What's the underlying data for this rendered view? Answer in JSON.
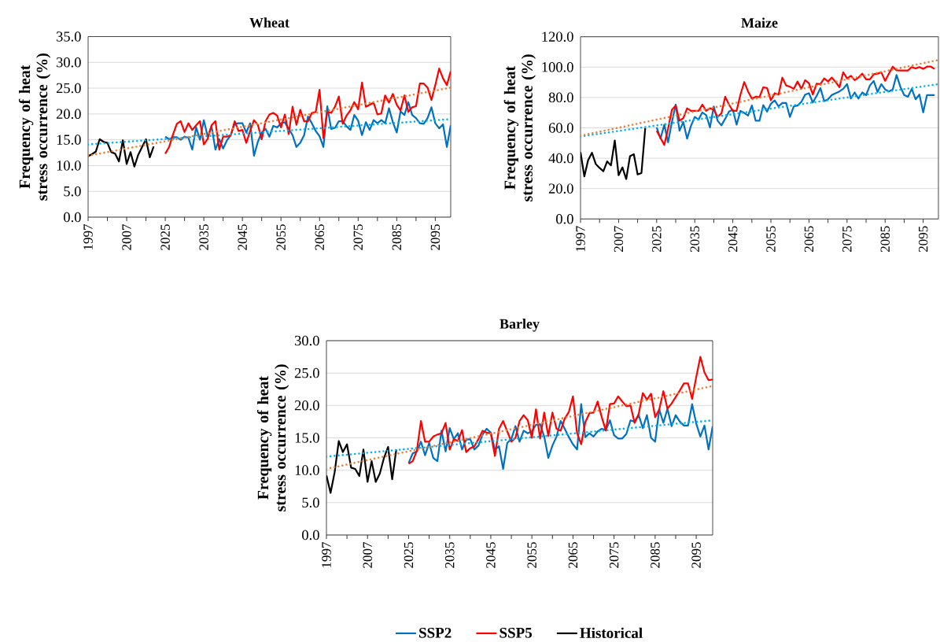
{
  "chart_data": [
    {
      "type": "line",
      "title": "Wheat",
      "ylabel": "Frequency of heat stress occurrence (%)",
      "grid": "y",
      "categories": [
        "1997",
        null,
        null,
        null,
        null,
        null,
        null,
        null,
        null,
        null,
        "2007",
        null,
        null,
        null,
        null,
        null,
        null,
        null,
        null,
        null,
        "2025",
        null,
        null,
        null,
        null,
        null,
        null,
        null,
        null,
        null,
        "2035",
        null,
        null,
        null,
        null,
        null,
        null,
        null,
        null,
        null,
        "2045",
        null,
        null,
        null,
        null,
        null,
        null,
        null,
        null,
        null,
        "2055",
        null,
        null,
        null,
        null,
        null,
        null,
        null,
        null,
        null,
        "2065",
        null,
        null,
        null,
        null,
        null,
        null,
        null,
        null,
        null,
        "2075",
        null,
        null,
        null,
        null,
        null,
        null,
        null,
        null,
        null,
        "2085",
        null,
        null,
        null,
        null,
        null,
        null,
        null,
        null,
        null,
        "2095",
        null,
        null,
        null,
        null
      ],
      "ylim": [
        0,
        35
      ],
      "yticks": [
        {
          "value": 0,
          "label": "0.0"
        },
        {
          "value": 5,
          "label": "5.0"
        },
        {
          "value": 10,
          "label": "10.0"
        },
        {
          "value": 15,
          "label": "15.0"
        },
        {
          "value": 20,
          "label": "20.0"
        },
        {
          "value": 25,
          "label": "25.0"
        },
        {
          "value": 30,
          "label": "30.0"
        },
        {
          "value": 35,
          "label": "35.0"
        }
      ],
      "series": [
        {
          "color": "#0070c0",
          "values": [
            null,
            null,
            null,
            null,
            null,
            null,
            null,
            null,
            null,
            null,
            null,
            null,
            null,
            null,
            null,
            null,
            null,
            null,
            null,
            null,
            15.6,
            15.1,
            15.5,
            15.5,
            15.0,
            15.6,
            15.4,
            13.1,
            17.4,
            15.0,
            18.8,
            15.6,
            17.6,
            13.1,
            15.1,
            13.3,
            14.9,
            15.9,
            18.1,
            18.2,
            18.2,
            16.4,
            18.2,
            11.9,
            14.6,
            16.4,
            17.1,
            15.6,
            17.7,
            17.4,
            18.2,
            18.4,
            17.1,
            15.9,
            13.6,
            14.4,
            15.9,
            19.5,
            18.2,
            16.7,
            15.7,
            13.6,
            21.5,
            17.1,
            17.3,
            18.6,
            18.6,
            17.6,
            16.9,
            19.8,
            18.7,
            15.9,
            18.4,
            16.9,
            18.8,
            18.2,
            18.8,
            18.2,
            21.1,
            18.4,
            16.4,
            20.5,
            19.8,
            22.3,
            19.8,
            19.2,
            18.2,
            18.1,
            19.2,
            21.3,
            18.2,
            17.2,
            18.0,
            13.6,
            17.8
          ]
        },
        {
          "color": "#ff0000",
          "values": [
            null,
            null,
            null,
            null,
            null,
            null,
            null,
            null,
            null,
            null,
            null,
            null,
            null,
            null,
            null,
            null,
            null,
            null,
            null,
            null,
            12.3,
            13.6,
            16.0,
            18.1,
            18.6,
            16.5,
            18.2,
            16.9,
            17.8,
            18.6,
            14.1,
            15.2,
            17.8,
            18.6,
            13.1,
            15.6,
            15.6,
            15.9,
            18.6,
            16.7,
            16.9,
            14.4,
            16.7,
            18.8,
            17.9,
            15.1,
            18.6,
            19.9,
            20.2,
            19.7,
            17.4,
            19.9,
            16.1,
            21.4,
            17.9,
            20.8,
            18.6,
            18.6,
            20.2,
            20.4,
            24.7,
            15.3,
            20.4,
            20.2,
            21.4,
            23.4,
            18.1,
            19.7,
            20.7,
            22.3,
            20.9,
            26.1,
            21.4,
            21.8,
            22.2,
            19.9,
            20.1,
            23.6,
            22.2,
            23.9,
            21.8,
            20.7,
            23.6,
            20.4,
            21.3,
            21.5,
            25.9,
            25.9,
            25.1,
            22.7,
            25.6,
            28.8,
            26.9,
            25.6,
            28.3
          ]
        },
        {
          "color": "#000000",
          "values": [
            11.8,
            12.2,
            12.7,
            15.1,
            14.6,
            14.4,
            12.6,
            12.3,
            10.8,
            14.9,
            10.3,
            12.6,
            9.8,
            12.1,
            13.6,
            15.1,
            11.6,
            13.7,
            null,
            null,
            null,
            null,
            null,
            null,
            null,
            null,
            null,
            null,
            null,
            null,
            null,
            null,
            null,
            null,
            null,
            null,
            null,
            null,
            null,
            null,
            null,
            null,
            null,
            null,
            null,
            null,
            null,
            null,
            null,
            null,
            null,
            null,
            null,
            null,
            null,
            null,
            null,
            null,
            null,
            null,
            null,
            null,
            null,
            null,
            null,
            null,
            null,
            null,
            null,
            null,
            null,
            null,
            null,
            null,
            null,
            null,
            null,
            null,
            null,
            null,
            null,
            null,
            null,
            null,
            null,
            null,
            null,
            null,
            null,
            null,
            null,
            null,
            null,
            null,
            null
          ]
        },
        {
          "type": "line",
          "color": "#00b0f0",
          "line_style": "dotted",
          "values": [
            14.1,
            null,
            null,
            null,
            null,
            null,
            null,
            null,
            null,
            null,
            null,
            null,
            null,
            null,
            null,
            null,
            null,
            null,
            null,
            null,
            null,
            null,
            null,
            null,
            null,
            null,
            null,
            null,
            null,
            null,
            null,
            null,
            null,
            null,
            null,
            null,
            null,
            null,
            null,
            null,
            null,
            null,
            null,
            null,
            null,
            null,
            null,
            null,
            null,
            null,
            null,
            null,
            null,
            null,
            null,
            null,
            null,
            null,
            null,
            null,
            null,
            null,
            null,
            null,
            null,
            null,
            null,
            null,
            null,
            null,
            null,
            null,
            null,
            null,
            null,
            null,
            null,
            null,
            null,
            null,
            null,
            null,
            null,
            null,
            null,
            null,
            null,
            null,
            null,
            null,
            null,
            null,
            null,
            null,
            19.0
          ]
        },
        {
          "type": "line",
          "color": "#ed7d31",
          "line_style": "dotted",
          "values": [
            11.9,
            null,
            null,
            null,
            null,
            null,
            null,
            null,
            null,
            null,
            null,
            null,
            null,
            null,
            null,
            null,
            null,
            null,
            null,
            null,
            null,
            null,
            null,
            null,
            null,
            null,
            null,
            null,
            null,
            null,
            null,
            null,
            null,
            null,
            null,
            null,
            null,
            null,
            null,
            null,
            null,
            null,
            null,
            null,
            null,
            null,
            null,
            null,
            null,
            null,
            null,
            null,
            null,
            null,
            null,
            null,
            null,
            null,
            null,
            null,
            null,
            null,
            null,
            null,
            null,
            null,
            null,
            null,
            null,
            null,
            null,
            null,
            null,
            null,
            null,
            null,
            null,
            null,
            null,
            null,
            null,
            null,
            null,
            null,
            null,
            null,
            null,
            null,
            null,
            null,
            null,
            null,
            null,
            null,
            25.1
          ]
        }
      ]
    },
    {
      "type": "line",
      "title": "Maize",
      "ylabel": "Frequency of heat stress occurrence (%)",
      "grid": "y",
      "categories": [
        "1997",
        null,
        null,
        null,
        null,
        null,
        null,
        null,
        null,
        null,
        "2007",
        null,
        null,
        null,
        null,
        null,
        null,
        null,
        null,
        null,
        "2025",
        null,
        null,
        null,
        null,
        null,
        null,
        null,
        null,
        null,
        "2035",
        null,
        null,
        null,
        null,
        null,
        null,
        null,
        null,
        null,
        "2045",
        null,
        null,
        null,
        null,
        null,
        null,
        null,
        null,
        null,
        "2055",
        null,
        null,
        null,
        null,
        null,
        null,
        null,
        null,
        null,
        "2065",
        null,
        null,
        null,
        null,
        null,
        null,
        null,
        null,
        null,
        "2075",
        null,
        null,
        null,
        null,
        null,
        null,
        null,
        null,
        null,
        "2085",
        null,
        null,
        null,
        null,
        null,
        null,
        null,
        null,
        null,
        "2095",
        null,
        null,
        null,
        null
      ],
      "ylim": [
        0,
        120
      ],
      "yticks": [
        {
          "value": 0,
          "label": "0.0"
        },
        {
          "value": 20,
          "label": "20.0"
        },
        {
          "value": 40,
          "label": "40.0"
        },
        {
          "value": 60,
          "label": "60.0"
        },
        {
          "value": 80,
          "label": "80.0"
        },
        {
          "value": 100,
          "label": "100.0"
        },
        {
          "value": 120,
          "label": "120.0"
        }
      ],
      "series": [
        {
          "color": "#0070c0",
          "values": [
            null,
            null,
            null,
            null,
            null,
            null,
            null,
            null,
            null,
            null,
            null,
            null,
            null,
            null,
            null,
            null,
            null,
            null,
            null,
            null,
            60.3,
            52.9,
            62.1,
            50.5,
            63.8,
            75.3,
            58.1,
            63.8,
            52.9,
            61.2,
            67.2,
            65.5,
            70.2,
            68.4,
            60.3,
            74.1,
            64.7,
            61.6,
            66.0,
            70.7,
            71.9,
            62.1,
            71.2,
            69.8,
            68.1,
            74.7,
            64.7,
            64.7,
            75.0,
            70.7,
            75.9,
            78.1,
            74.1,
            76.4,
            76.4,
            67.2,
            74.1,
            74.7,
            77.1,
            81.9,
            82.8,
            76.7,
            81.0,
            86.2,
            77.6,
            78.8,
            81.6,
            82.8,
            84.0,
            85.7,
            88.8,
            79.3,
            83.3,
            79.3,
            83.3,
            81.6,
            87.9,
            90.9,
            83.6,
            88.8,
            85.3,
            84.0,
            85.3,
            94.8,
            87.1,
            81.6,
            80.5,
            85.7,
            78.8,
            81.9,
            70.2,
            81.6,
            81.6,
            81.6,
            null
          ]
        },
        {
          "color": "#ff0000",
          "values": [
            null,
            null,
            null,
            null,
            null,
            null,
            null,
            null,
            null,
            null,
            null,
            null,
            null,
            null,
            null,
            null,
            null,
            null,
            null,
            null,
            58.1,
            53.4,
            48.8,
            59.5,
            71.9,
            74.7,
            64.7,
            66.4,
            72.9,
            71.2,
            71.2,
            71.2,
            75.3,
            71.2,
            72.9,
            71.9,
            67.2,
            69.5,
            80.5,
            75.3,
            71.2,
            71.2,
            81.9,
            90.2,
            84.0,
            79.3,
            80.5,
            80.2,
            86.7,
            86.2,
            78.1,
            82.8,
            81.9,
            93.1,
            87.9,
            87.1,
            85.7,
            90.5,
            85.7,
            91.4,
            89.3,
            81.9,
            89.1,
            88.8,
            92.6,
            90.5,
            93.1,
            90.2,
            86.7,
            96.6,
            92.6,
            94.3,
            91.4,
            93.1,
            95.7,
            91.9,
            91.9,
            95.3,
            95.7,
            96.6,
            90.9,
            95.7,
            100.3,
            97.9,
            97.8,
            97.8,
            97.8,
            100.0,
            99.1,
            100.0,
            98.8,
            100.3,
            100.3,
            98.8,
            null
          ]
        },
        {
          "color": "#000000",
          "values": [
            44.0,
            28.0,
            38.8,
            43.6,
            36.2,
            33.6,
            31.4,
            37.9,
            35.3,
            51.7,
            28.8,
            34.0,
            26.2,
            41.4,
            42.6,
            29.3,
            30.2,
            59.8,
            null,
            null,
            null,
            null,
            null,
            null,
            null,
            null,
            null,
            null,
            null,
            null,
            null,
            null,
            null,
            null,
            null,
            null,
            null,
            null,
            null,
            null,
            null,
            null,
            null,
            null,
            null,
            null,
            null,
            null,
            null,
            null,
            null,
            null,
            null,
            null,
            null,
            null,
            null,
            null,
            null,
            null,
            null,
            null,
            null,
            null,
            null,
            null,
            null,
            null,
            null,
            null,
            null,
            null,
            null,
            null,
            null,
            null,
            null,
            null,
            null,
            null,
            null,
            null,
            null,
            null,
            null,
            null,
            null,
            null,
            null,
            null,
            null,
            null,
            null,
            null,
            null
          ]
        },
        {
          "type": "line",
          "color": "#00b0f0",
          "line_style": "dotted",
          "values": [
            54.3,
            null,
            null,
            null,
            null,
            null,
            null,
            null,
            null,
            null,
            null,
            null,
            null,
            null,
            null,
            null,
            null,
            null,
            null,
            null,
            null,
            null,
            null,
            null,
            null,
            null,
            null,
            null,
            null,
            null,
            null,
            null,
            null,
            null,
            null,
            null,
            null,
            null,
            null,
            null,
            null,
            null,
            null,
            null,
            null,
            null,
            null,
            null,
            null,
            null,
            null,
            null,
            null,
            null,
            null,
            null,
            null,
            null,
            null,
            null,
            null,
            null,
            null,
            null,
            null,
            null,
            null,
            null,
            null,
            null,
            null,
            null,
            null,
            null,
            null,
            null,
            null,
            null,
            null,
            null,
            null,
            null,
            null,
            null,
            null,
            null,
            null,
            null,
            null,
            null,
            null,
            null,
            null,
            null,
            88.8
          ]
        },
        {
          "type": "line",
          "color": "#ed7d31",
          "line_style": "dotted",
          "values": [
            54.8,
            null,
            null,
            null,
            null,
            null,
            null,
            null,
            null,
            null,
            null,
            null,
            null,
            null,
            null,
            null,
            null,
            null,
            null,
            null,
            null,
            null,
            null,
            null,
            null,
            null,
            null,
            null,
            null,
            null,
            null,
            null,
            null,
            null,
            null,
            null,
            null,
            null,
            null,
            null,
            null,
            null,
            null,
            null,
            null,
            null,
            null,
            null,
            null,
            null,
            null,
            null,
            null,
            null,
            null,
            null,
            null,
            null,
            null,
            null,
            null,
            null,
            null,
            null,
            null,
            null,
            null,
            null,
            null,
            null,
            null,
            null,
            null,
            null,
            null,
            null,
            null,
            null,
            null,
            null,
            null,
            null,
            null,
            null,
            null,
            null,
            null,
            null,
            null,
            null,
            null,
            null,
            null,
            null,
            104.7
          ]
        }
      ]
    },
    {
      "type": "line",
      "title": "Barley",
      "ylabel": "Frequency of heat stress occurrence (%)",
      "grid": "y",
      "legend": "bottom",
      "categories": [
        "1997",
        null,
        null,
        null,
        null,
        null,
        null,
        null,
        null,
        null,
        "2007",
        null,
        null,
        null,
        null,
        null,
        null,
        null,
        null,
        null,
        "2025",
        null,
        null,
        null,
        null,
        null,
        null,
        null,
        null,
        null,
        "2035",
        null,
        null,
        null,
        null,
        null,
        null,
        null,
        null,
        null,
        "2045",
        null,
        null,
        null,
        null,
        null,
        null,
        null,
        null,
        null,
        "2055",
        null,
        null,
        null,
        null,
        null,
        null,
        null,
        null,
        null,
        "2065",
        null,
        null,
        null,
        null,
        null,
        null,
        null,
        null,
        null,
        "2075",
        null,
        null,
        null,
        null,
        null,
        null,
        null,
        null,
        null,
        "2085",
        null,
        null,
        null,
        null,
        null,
        null,
        null,
        null,
        null,
        "2095",
        null,
        null,
        null,
        null
      ],
      "ylim": [
        0,
        30
      ],
      "yticks": [
        {
          "value": 0,
          "label": "0.0"
        },
        {
          "value": 5,
          "label": "5.0"
        },
        {
          "value": 10,
          "label": "10.0"
        },
        {
          "value": 15,
          "label": "15.0"
        },
        {
          "value": 20,
          "label": "20.0"
        },
        {
          "value": 25,
          "label": "25.0"
        },
        {
          "value": 30,
          "label": "30.0"
        }
      ],
      "series": [
        {
          "name": "SSP2",
          "color": "#0070c0",
          "values": [
            null,
            null,
            null,
            null,
            null,
            null,
            null,
            null,
            null,
            null,
            null,
            null,
            null,
            null,
            null,
            null,
            null,
            null,
            null,
            null,
            11.1,
            12.6,
            12.9,
            14.4,
            12.3,
            14.2,
            11.9,
            11.4,
            16.1,
            12.9,
            16.5,
            14.8,
            15.7,
            13.2,
            14.7,
            14.8,
            13.2,
            13.8,
            15.5,
            16.4,
            15.8,
            13.2,
            13.7,
            10.2,
            14.2,
            14.8,
            16.8,
            14.4,
            16.1,
            15.7,
            16.0,
            17.0,
            17.1,
            15.2,
            11.9,
            13.8,
            15.2,
            17.6,
            16.4,
            15.1,
            14.0,
            13.2,
            20.2,
            15.1,
            15.7,
            15.2,
            16.0,
            16.4,
            16.2,
            17.7,
            15.4,
            14.9,
            14.9,
            15.6,
            17.7,
            17.5,
            18.5,
            16.5,
            18.5,
            15.0,
            14.4,
            19.4,
            17.3,
            19.5,
            16.8,
            18.5,
            17.5,
            16.9,
            16.9,
            20.2,
            17.2,
            15.2,
            16.9,
            13.2,
            16.8
          ]
        },
        {
          "name": "SSP5",
          "color": "#ff0000",
          "values": [
            null,
            null,
            null,
            null,
            null,
            null,
            null,
            null,
            null,
            null,
            null,
            null,
            null,
            null,
            null,
            null,
            null,
            null,
            null,
            null,
            11.0,
            11.4,
            13.0,
            17.6,
            14.4,
            14.4,
            15.2,
            15.5,
            15.7,
            17.3,
            13.2,
            14.8,
            14.5,
            16.2,
            12.8,
            13.4,
            13.7,
            14.8,
            16.1,
            15.8,
            15.7,
            12.2,
            16.4,
            17.6,
            16.0,
            14.4,
            15.0,
            17.6,
            18.5,
            17.7,
            15.0,
            19.4,
            14.9,
            18.9,
            15.3,
            18.9,
            16.4,
            16.1,
            18.0,
            19.0,
            21.4,
            15.7,
            14.0,
            17.4,
            18.8,
            18.9,
            20.6,
            18.2,
            16.1,
            20.2,
            20.3,
            21.4,
            20.6,
            19.9,
            20.0,
            17.3,
            18.7,
            21.9,
            20.9,
            21.8,
            18.2,
            19.4,
            22.2,
            19.5,
            20.3,
            21.3,
            22.3,
            23.4,
            23.4,
            21.0,
            24.4,
            27.5,
            25.1,
            23.9,
            24.0
          ]
        },
        {
          "name": "Historical",
          "color": "#000000",
          "values": [
            9.2,
            6.5,
            9.7,
            14.5,
            12.8,
            14.0,
            10.4,
            10.2,
            9.1,
            13.2,
            8.2,
            11.4,
            8.2,
            9.5,
            11.9,
            13.6,
            8.6,
            13.2,
            null,
            null,
            null,
            null,
            null,
            null,
            null,
            null,
            null,
            null,
            null,
            null,
            null,
            null,
            null,
            null,
            null,
            null,
            null,
            null,
            null,
            null,
            null,
            null,
            null,
            null,
            null,
            null,
            null,
            null,
            null,
            null,
            null,
            null,
            null,
            null,
            null,
            null,
            null,
            null,
            null,
            null,
            null,
            null,
            null,
            null,
            null,
            null,
            null,
            null,
            null,
            null,
            null,
            null,
            null,
            null,
            null,
            null,
            null,
            null,
            null,
            null,
            null,
            null,
            null,
            null,
            null,
            null,
            null,
            null,
            null,
            null,
            null,
            null,
            null,
            null,
            null
          ]
        },
        {
          "type": "line",
          "color": "#00b0f0",
          "line_style": "dotted",
          "values": [
            12.1,
            null,
            null,
            null,
            null,
            null,
            null,
            null,
            null,
            null,
            null,
            null,
            null,
            null,
            null,
            null,
            null,
            null,
            null,
            null,
            null,
            null,
            null,
            null,
            null,
            null,
            null,
            null,
            null,
            null,
            null,
            null,
            null,
            null,
            null,
            null,
            null,
            null,
            null,
            null,
            null,
            null,
            null,
            null,
            null,
            null,
            null,
            null,
            null,
            null,
            null,
            null,
            null,
            null,
            null,
            null,
            null,
            null,
            null,
            null,
            null,
            null,
            null,
            null,
            null,
            null,
            null,
            null,
            null,
            null,
            null,
            null,
            null,
            null,
            null,
            null,
            null,
            null,
            null,
            null,
            null,
            null,
            null,
            null,
            null,
            null,
            null,
            null,
            null,
            null,
            null,
            null,
            null,
            null,
            17.7
          ]
        },
        {
          "type": "line",
          "color": "#ed7d31",
          "line_style": "dotted",
          "values": [
            10.2,
            null,
            null,
            null,
            null,
            null,
            null,
            null,
            null,
            null,
            null,
            null,
            null,
            null,
            null,
            null,
            null,
            null,
            null,
            null,
            null,
            null,
            null,
            null,
            null,
            null,
            null,
            null,
            null,
            null,
            null,
            null,
            null,
            null,
            null,
            null,
            null,
            null,
            null,
            null,
            null,
            null,
            null,
            null,
            null,
            null,
            null,
            null,
            null,
            null,
            null,
            null,
            null,
            null,
            null,
            null,
            null,
            null,
            null,
            null,
            null,
            null,
            null,
            null,
            null,
            null,
            null,
            null,
            null,
            null,
            null,
            null,
            null,
            null,
            null,
            null,
            null,
            null,
            null,
            null,
            null,
            null,
            null,
            null,
            null,
            null,
            null,
            null,
            null,
            null,
            null,
            null,
            null,
            null,
            23.0
          ]
        }
      ]
    }
  ]
}
